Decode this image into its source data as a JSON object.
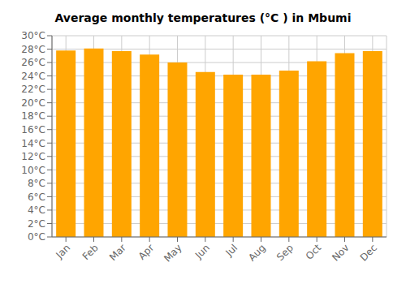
{
  "chart_data": {
    "type": "bar",
    "title": "Average monthly temperatures (°C ) in Mbumi",
    "categories": [
      "Jan",
      "Feb",
      "Mar",
      "Apr",
      "May",
      "Jun",
      "Jul",
      "Aug",
      "Sep",
      "Oct",
      "Nov",
      "Dec"
    ],
    "values": [
      27.8,
      28.1,
      27.7,
      27.2,
      26.0,
      24.6,
      24.2,
      24.2,
      24.8,
      26.2,
      27.4,
      27.7
    ],
    "color": "#FFA500",
    "ylim": [
      0,
      30
    ],
    "yticks": [
      {
        "value": 0,
        "label": "0°C"
      },
      {
        "value": 2,
        "label": "2°C"
      },
      {
        "value": 4,
        "label": "4°C"
      },
      {
        "value": 6,
        "label": "6°C"
      },
      {
        "value": 8,
        "label": "8°C"
      },
      {
        "value": 10,
        "label": "10°C"
      },
      {
        "value": 12,
        "label": "12°C"
      },
      {
        "value": 14,
        "label": "14°C"
      },
      {
        "value": 16,
        "label": "16°C"
      },
      {
        "value": 18,
        "label": "18°C"
      },
      {
        "value": 20,
        "label": "20°C"
      },
      {
        "value": 22,
        "label": "22°C"
      },
      {
        "value": 24,
        "label": "24°C"
      },
      {
        "value": 26,
        "label": "26°C"
      },
      {
        "value": 28,
        "label": "28°C"
      },
      {
        "value": 30,
        "label": "30°C"
      }
    ],
    "grid": true
  }
}
